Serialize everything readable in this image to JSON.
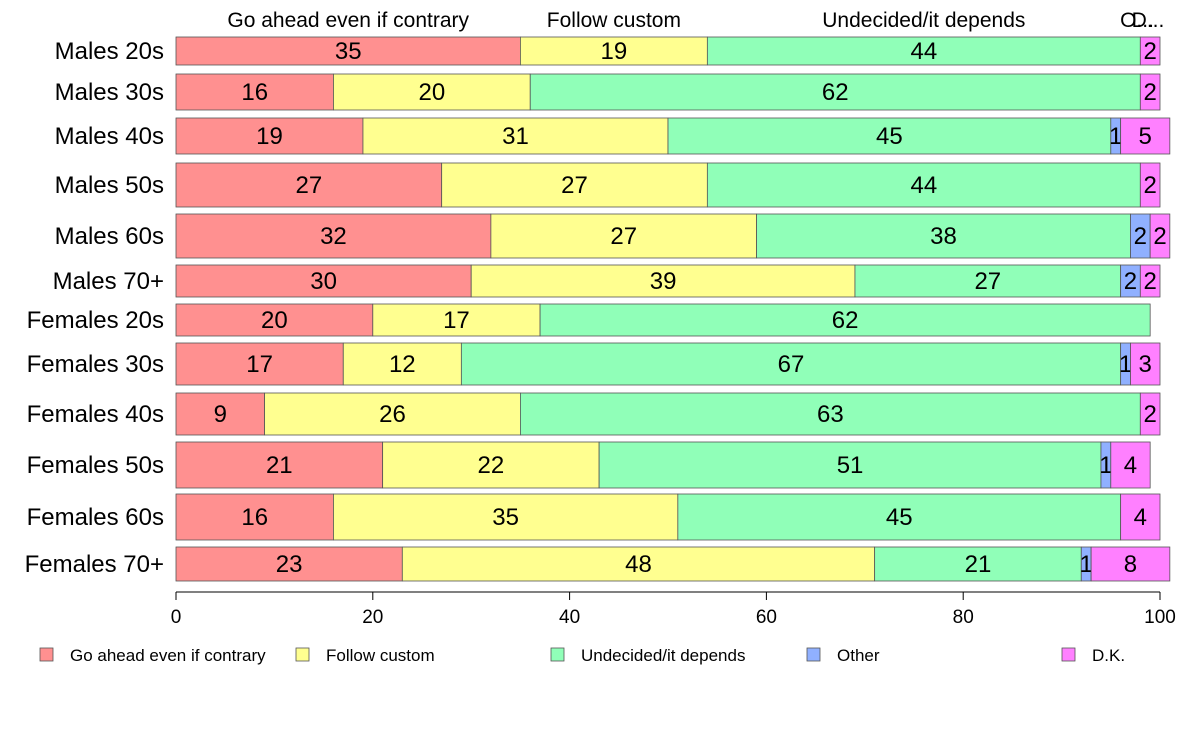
{
  "chart_data": {
    "type": "bar",
    "orientation": "horizontal",
    "stacked": true,
    "categories": [
      "Males 20s",
      "Males 30s",
      "Males 40s",
      "Males 50s",
      "Males 60s",
      "Males 70+",
      "Females 20s",
      "Females 30s",
      "Females 40s",
      "Females 50s",
      "Females 60s",
      "Females 70+"
    ],
    "series": [
      {
        "name": "Go ahead even if contrary",
        "color": "#ff9090",
        "values": [
          35,
          16,
          19,
          27,
          32,
          30,
          20,
          17,
          9,
          21,
          16,
          23
        ]
      },
      {
        "name": "Follow custom",
        "color": "#ffff90",
        "values": [
          19,
          20,
          31,
          27,
          27,
          39,
          17,
          12,
          26,
          22,
          35,
          48
        ]
      },
      {
        "name": "Undecided/it depends",
        "color": "#90ffb8",
        "values": [
          44,
          62,
          45,
          44,
          38,
          27,
          62,
          67,
          63,
          51,
          45,
          21
        ]
      },
      {
        "name": "Other",
        "color": "#90b0ff",
        "values": [
          0,
          0,
          1,
          0,
          2,
          2,
          0,
          1,
          0,
          1,
          0,
          1
        ]
      },
      {
        "name": "D.K.",
        "color": "#ff80ff",
        "values": [
          2,
          2,
          5,
          2,
          2,
          2,
          0,
          3,
          2,
          4,
          4,
          8
        ]
      }
    ],
    "top_labels": [
      "Go ahead even if contrary",
      "Follow custom",
      "Undecided/it depends",
      "O...",
      "D..."
    ],
    "xlim": [
      0,
      100
    ],
    "xticks": [
      0,
      20,
      40,
      60,
      80,
      100
    ],
    "xlabel": "",
    "ylabel": "",
    "title": "",
    "legend_position": "bottom",
    "grid": false
  }
}
